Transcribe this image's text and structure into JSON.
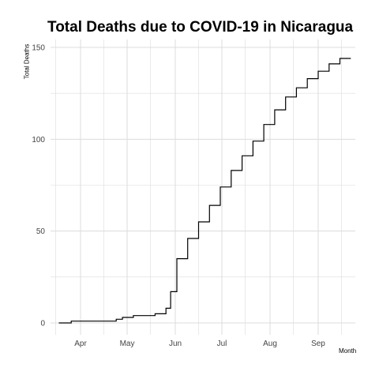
{
  "chart_data": {
    "type": "line",
    "title": "Total Deaths due to COVID-19 in Nicaragua",
    "xlabel": "Month",
    "ylabel": "Total Deaths",
    "x_ticks": [
      "Apr",
      "May",
      "Jun",
      "Jul",
      "Aug",
      "Sep"
    ],
    "y_ticks": [
      0,
      50,
      100,
      150
    ],
    "ylim": [
      0,
      150
    ],
    "grid": true,
    "line_style": "step",
    "line_color": "#000000",
    "grid_color": "#dcdcdc",
    "series": [
      {
        "x": [
          "2020-03-18",
          "2020-03-26",
          "2020-04-24",
          "2020-04-28",
          "2020-05-05",
          "2020-05-19",
          "2020-05-26",
          "2020-05-29",
          "2020-06-02",
          "2020-06-09",
          "2020-06-16",
          "2020-06-23",
          "2020-06-30",
          "2020-07-07",
          "2020-07-14",
          "2020-07-21",
          "2020-07-28",
          "2020-08-04",
          "2020-08-11",
          "2020-08-18",
          "2020-08-25",
          "2020-09-01",
          "2020-09-08",
          "2020-09-15"
        ],
        "values": [
          0,
          1,
          2,
          3,
          4,
          5,
          8,
          17,
          35,
          46,
          55,
          64,
          74,
          83,
          91,
          99,
          108,
          116,
          123,
          128,
          133,
          137,
          141,
          144
        ],
        "end": "2020-09-22"
      }
    ]
  }
}
